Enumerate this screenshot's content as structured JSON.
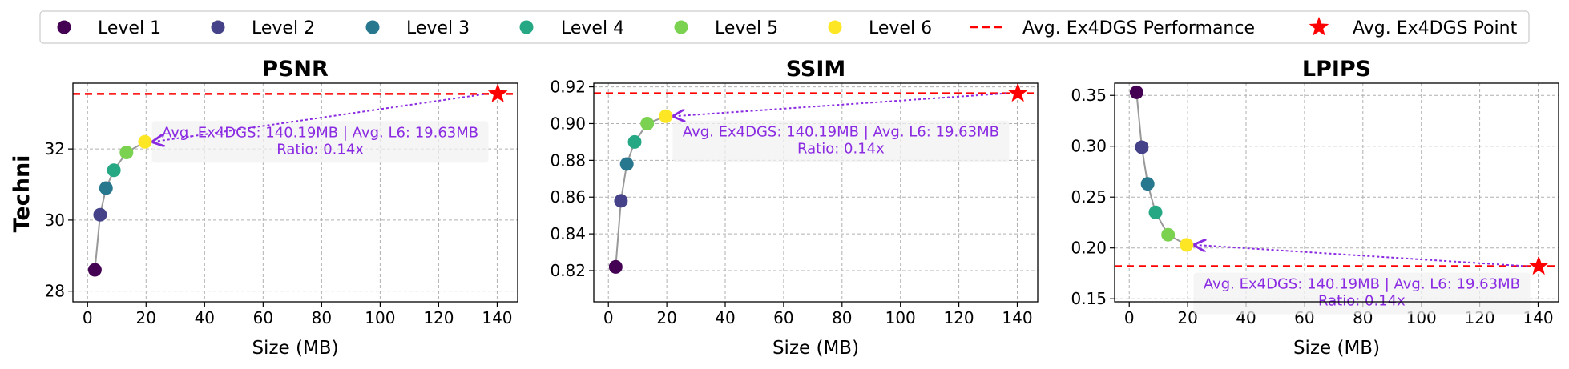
{
  "colors": {
    "levels": [
      "#440154",
      "#46428a",
      "#27778e",
      "#25a883",
      "#7bd150",
      "#fde725"
    ],
    "reference": "#ff0000",
    "annotation": "#8a2be2",
    "connector": "#999999"
  },
  "legend": {
    "entries": [
      "Level 1",
      "Level 2",
      "Level 3",
      "Level 4",
      "Level 5",
      "Level 6",
      "Avg. Ex4DGS Performance",
      "Avg. Ex4DGS Point"
    ]
  },
  "figure": {
    "ylabel": "Techni"
  },
  "chart_data": [
    {
      "type": "scatter",
      "title": "PSNR",
      "xlabel": "Size (MB)",
      "ylabel": "Techni",
      "xlim": [
        -5,
        147
      ],
      "ylim": [
        27.7,
        33.85
      ],
      "xticks": [
        0,
        20,
        40,
        60,
        80,
        100,
        120,
        140
      ],
      "xtick_labels": [
        "0",
        "20",
        "40",
        "60",
        "80",
        "100",
        "120",
        "140"
      ],
      "yticks": [
        28,
        30,
        32
      ],
      "ytick_labels": [
        "28",
        "30",
        "32"
      ],
      "grid": true,
      "series": [
        {
          "name": "Level 1",
          "x": [
            2.5
          ],
          "y": [
            28.6
          ]
        },
        {
          "name": "Level 2",
          "x": [
            4.3
          ],
          "y": [
            30.15
          ]
        },
        {
          "name": "Level 3",
          "x": [
            6.3
          ],
          "y": [
            30.9
          ]
        },
        {
          "name": "Level 4",
          "x": [
            9.0
          ],
          "y": [
            31.4
          ]
        },
        {
          "name": "Level 5",
          "x": [
            13.3
          ],
          "y": [
            31.9
          ]
        },
        {
          "name": "Level 6",
          "x": [
            19.63
          ],
          "y": [
            32.2
          ]
        }
      ],
      "reference_line": {
        "name": "Avg. Ex4DGS Performance",
        "y": 33.55
      },
      "reference_point": {
        "name": "Avg. Ex4DGS Point",
        "x": 140.19,
        "y": 33.55
      },
      "annotation": {
        "line1": "Avg. Ex4DGS: 140.19MB | Avg. L6: 19.63MB",
        "line2": "Ratio: 0.14x",
        "placement": "below-line"
      }
    },
    {
      "type": "scatter",
      "title": "SSIM",
      "xlabel": "Size (MB)",
      "ylabel": "",
      "xlim": [
        -5,
        147
      ],
      "ylim": [
        0.803,
        0.922
      ],
      "xticks": [
        0,
        20,
        40,
        60,
        80,
        100,
        120,
        140
      ],
      "xtick_labels": [
        "0",
        "20",
        "40",
        "60",
        "80",
        "100",
        "120",
        "140"
      ],
      "yticks": [
        0.82,
        0.84,
        0.86,
        0.88,
        0.9,
        0.92
      ],
      "ytick_labels": [
        "0.82",
        "0.84",
        "0.86",
        "0.88",
        "0.90",
        "0.92"
      ],
      "grid": true,
      "series": [
        {
          "name": "Level 1",
          "x": [
            2.5
          ],
          "y": [
            0.822
          ]
        },
        {
          "name": "Level 2",
          "x": [
            4.3
          ],
          "y": [
            0.858
          ]
        },
        {
          "name": "Level 3",
          "x": [
            6.3
          ],
          "y": [
            0.878
          ]
        },
        {
          "name": "Level 4",
          "x": [
            9.0
          ],
          "y": [
            0.89
          ]
        },
        {
          "name": "Level 5",
          "x": [
            13.3
          ],
          "y": [
            0.9
          ]
        },
        {
          "name": "Level 6",
          "x": [
            19.63
          ],
          "y": [
            0.904
          ]
        }
      ],
      "reference_line": {
        "name": "Avg. Ex4DGS Performance",
        "y": 0.9165
      },
      "reference_point": {
        "name": "Avg. Ex4DGS Point",
        "x": 140.19,
        "y": 0.9165
      },
      "annotation": {
        "line1": "Avg. Ex4DGS: 140.19MB | Avg. L6: 19.63MB",
        "line2": "Ratio: 0.14x",
        "placement": "below-line"
      }
    },
    {
      "type": "scatter",
      "title": "LPIPS",
      "xlabel": "Size (MB)",
      "ylabel": "",
      "xlim": [
        -5,
        147
      ],
      "ylim": [
        0.147,
        0.362
      ],
      "xticks": [
        0,
        20,
        40,
        60,
        80,
        100,
        120,
        140
      ],
      "xtick_labels": [
        "0",
        "20",
        "40",
        "60",
        "80",
        "100",
        "120",
        "140"
      ],
      "yticks": [
        0.15,
        0.2,
        0.25,
        0.3,
        0.35
      ],
      "ytick_labels": [
        "0.15",
        "0.20",
        "0.25",
        "0.30",
        "0.35"
      ],
      "grid": true,
      "series": [
        {
          "name": "Level 1",
          "x": [
            2.5
          ],
          "y": [
            0.353
          ]
        },
        {
          "name": "Level 2",
          "x": [
            4.3
          ],
          "y": [
            0.299
          ]
        },
        {
          "name": "Level 3",
          "x": [
            6.3
          ],
          "y": [
            0.263
          ]
        },
        {
          "name": "Level 4",
          "x": [
            9.0
          ],
          "y": [
            0.235
          ]
        },
        {
          "name": "Level 5",
          "x": [
            13.3
          ],
          "y": [
            0.213
          ]
        },
        {
          "name": "Level 6",
          "x": [
            19.63
          ],
          "y": [
            0.203
          ]
        }
      ],
      "reference_line": {
        "name": "Avg. Ex4DGS Performance",
        "y": 0.182
      },
      "reference_point": {
        "name": "Avg. Ex4DGS Point",
        "x": 140.19,
        "y": 0.182
      },
      "annotation": {
        "line1": "Avg. Ex4DGS: 140.19MB | Avg. L6: 19.63MB",
        "line2": "Ratio: 0.14x",
        "placement": "above-axis"
      }
    }
  ]
}
